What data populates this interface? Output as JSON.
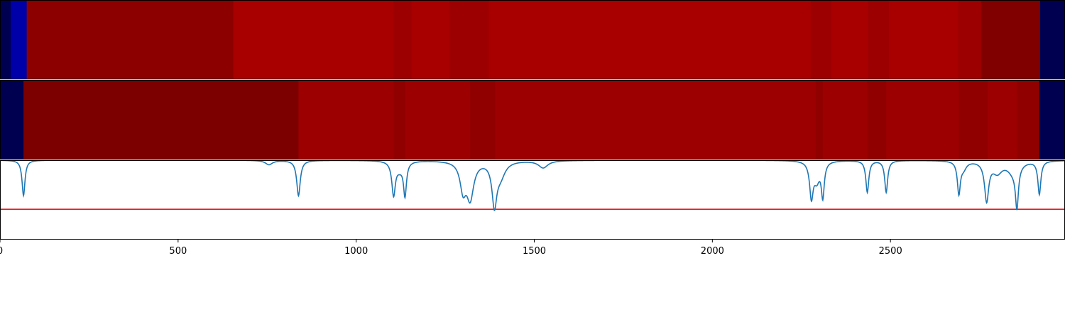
{
  "chart_data": [
    {
      "type": "heatmap",
      "x_range": [
        0,
        2990
      ],
      "segments": [
        {
          "x0": 0,
          "x1": 30,
          "color": "#000050"
        },
        {
          "x0": 30,
          "x1": 75,
          "color": "#0000a8"
        },
        {
          "x0": 75,
          "x1": 655,
          "color": "#8c0000"
        },
        {
          "x0": 655,
          "x1": 1105,
          "color": "#a80000"
        },
        {
          "x0": 1105,
          "x1": 1155,
          "color": "#9c0000"
        },
        {
          "x0": 1155,
          "x1": 1262,
          "color": "#a80000"
        },
        {
          "x0": 1262,
          "x1": 1372,
          "color": "#9c0000"
        },
        {
          "x0": 1372,
          "x1": 2276,
          "color": "#a80000"
        },
        {
          "x0": 2276,
          "x1": 2334,
          "color": "#9c0000"
        },
        {
          "x0": 2334,
          "x1": 2437,
          "color": "#a80000"
        },
        {
          "x0": 2437,
          "x1": 2496,
          "color": "#9c0000"
        },
        {
          "x0": 2496,
          "x1": 2690,
          "color": "#a80000"
        },
        {
          "x0": 2690,
          "x1": 2755,
          "color": "#9c0000"
        },
        {
          "x0": 2755,
          "x1": 2920,
          "color": "#800000"
        },
        {
          "x0": 2920,
          "x1": 2990,
          "color": "#000050"
        }
      ]
    },
    {
      "type": "heatmap",
      "x_range": [
        0,
        2990
      ],
      "segments": [
        {
          "x0": 0,
          "x1": 66,
          "color": "#000050"
        },
        {
          "x0": 66,
          "x1": 838,
          "color": "#7c0000"
        },
        {
          "x0": 838,
          "x1": 1105,
          "color": "#9c0000"
        },
        {
          "x0": 1105,
          "x1": 1137,
          "color": "#900000"
        },
        {
          "x0": 1137,
          "x1": 1320,
          "color": "#9c0000"
        },
        {
          "x0": 1320,
          "x1": 1390,
          "color": "#900000"
        },
        {
          "x0": 1390,
          "x1": 2290,
          "color": "#9c0000"
        },
        {
          "x0": 2290,
          "x1": 2310,
          "color": "#900000"
        },
        {
          "x0": 2310,
          "x1": 2435,
          "color": "#9c0000"
        },
        {
          "x0": 2435,
          "x1": 2488,
          "color": "#900000"
        },
        {
          "x0": 2488,
          "x1": 2692,
          "color": "#9c0000"
        },
        {
          "x0": 2692,
          "x1": 2773,
          "color": "#900000"
        },
        {
          "x0": 2773,
          "x1": 2855,
          "color": "#9c0000"
        },
        {
          "x0": 2855,
          "x1": 2918,
          "color": "#900000"
        },
        {
          "x0": 2918,
          "x1": 2990,
          "color": "#000050"
        }
      ]
    },
    {
      "type": "line",
      "xlim": [
        0,
        2990
      ],
      "ylim": [
        -1.1,
        0
      ],
      "x_ticks": [
        0,
        500,
        1000,
        1500,
        2000,
        2500
      ],
      "x_tick_labels": [
        "0",
        "500",
        "1000",
        "1500",
        "2000",
        "2500"
      ],
      "baseline": 0,
      "threshold": -0.68,
      "line_color": "#1f77b4",
      "threshold_color": "#e41a1c",
      "dips": [
        {
          "center": 66,
          "depth": 0.49,
          "width": 5
        },
        {
          "center": 755,
          "depth": 0.06,
          "width": 12
        },
        {
          "center": 838,
          "depth": 0.49,
          "width": 6
        },
        {
          "center": 1105,
          "depth": 0.46,
          "width": 6
        },
        {
          "center": 1122,
          "depth": 0.1,
          "width": 12
        },
        {
          "center": 1137,
          "depth": 0.46,
          "width": 5
        },
        {
          "center": 1300,
          "depth": 0.37,
          "width": 10
        },
        {
          "center": 1320,
          "depth": 0.5,
          "width": 12
        },
        {
          "center": 1388,
          "depth": 0.58,
          "width": 8
        },
        {
          "center": 1405,
          "depth": 0.2,
          "width": 16
        },
        {
          "center": 1525,
          "depth": 0.1,
          "width": 16
        },
        {
          "center": 2278,
          "depth": 0.48,
          "width": 6
        },
        {
          "center": 2293,
          "depth": 0.25,
          "width": 10
        },
        {
          "center": 2310,
          "depth": 0.47,
          "width": 5
        },
        {
          "center": 2435,
          "depth": 0.44,
          "width": 5
        },
        {
          "center": 2488,
          "depth": 0.44,
          "width": 5
        },
        {
          "center": 2692,
          "depth": 0.44,
          "width": 5
        },
        {
          "center": 2705,
          "depth": 0.1,
          "width": 10
        },
        {
          "center": 2770,
          "depth": 0.54,
          "width": 7
        },
        {
          "center": 2800,
          "depth": 0.15,
          "width": 16
        },
        {
          "center": 2845,
          "depth": 0.15,
          "width": 20
        },
        {
          "center": 2855,
          "depth": 0.55,
          "width": 5
        },
        {
          "center": 2918,
          "depth": 0.46,
          "width": 5
        }
      ]
    }
  ]
}
